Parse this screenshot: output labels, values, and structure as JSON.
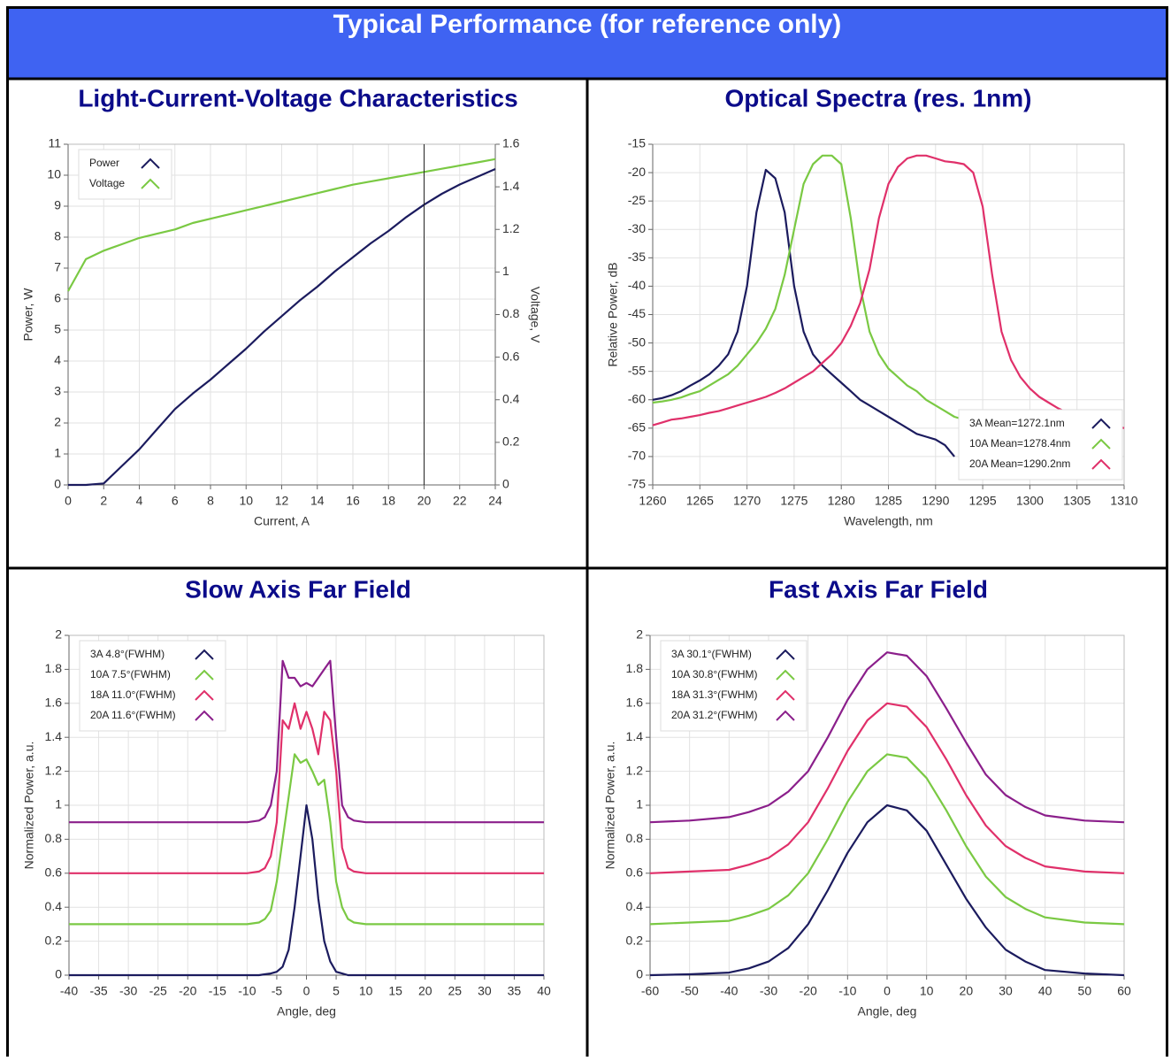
{
  "header": {
    "title": "Typical Performance (for reference only)"
  },
  "chart_data": [
    {
      "type": "line",
      "title": "Light-Current-Voltage Characteristics",
      "xlabel": "Current, A",
      "ylabel": "Power, W",
      "y2label": "Voltage, V",
      "xlim": [
        0,
        24
      ],
      "xticks": [
        0,
        2,
        4,
        6,
        8,
        10,
        12,
        14,
        16,
        18,
        20,
        22,
        24
      ],
      "ylim": [
        0,
        11
      ],
      "yticks": [
        0,
        1,
        2,
        3,
        4,
        5,
        6,
        7,
        8,
        9,
        10,
        11
      ],
      "y2lim": [
        0,
        1.6
      ],
      "y2ticks": [
        0,
        0.2,
        0.4,
        0.6,
        0.8,
        1,
        1.2,
        1.4,
        1.6
      ],
      "grid": true,
      "legend": "upper left",
      "cursor_x": 20,
      "x": [
        0,
        1,
        2,
        3,
        4,
        5,
        6,
        7,
        8,
        9,
        10,
        11,
        12,
        13,
        14,
        15,
        16,
        17,
        18,
        19,
        20,
        21,
        22,
        23,
        24
      ],
      "series": [
        {
          "name": "Power",
          "color": "#1b1b5e",
          "values": [
            0,
            0,
            0.05,
            0.6,
            1.15,
            1.8,
            2.45,
            2.95,
            3.4,
            3.9,
            4.4,
            4.95,
            5.45,
            5.95,
            6.4,
            6.9,
            7.35,
            7.8,
            8.2,
            8.65,
            9.05,
            9.4,
            9.7,
            9.95,
            10.2
          ]
        },
        {
          "name": "Voltage",
          "color": "#7ac943",
          "axis": "y2",
          "values": [
            0.91,
            1.06,
            1.1,
            1.13,
            1.16,
            1.18,
            1.2,
            1.23,
            1.25,
            1.27,
            1.29,
            1.31,
            1.33,
            1.35,
            1.37,
            1.39,
            1.41,
            1.425,
            1.44,
            1.455,
            1.47,
            1.485,
            1.5,
            1.515,
            1.53
          ]
        }
      ]
    },
    {
      "type": "line",
      "title": "Optical Spectra (res. 1nm)",
      "xlabel": "Wavelength, nm",
      "ylabel": "Relative Power, dB",
      "xlim": [
        1260,
        1310
      ],
      "xticks": [
        1260,
        1265,
        1270,
        1275,
        1280,
        1285,
        1290,
        1295,
        1300,
        1305,
        1310
      ],
      "ylim": [
        -75,
        -15
      ],
      "yticks": [
        -75,
        -70,
        -65,
        -60,
        -55,
        -50,
        -45,
        -40,
        -35,
        -30,
        -25,
        -20,
        -15
      ],
      "grid": true,
      "legend": "lower right",
      "x": [
        1260,
        1261,
        1262,
        1263,
        1264,
        1265,
        1266,
        1267,
        1268,
        1269,
        1270,
        1271,
        1272,
        1273,
        1274,
        1275,
        1276,
        1277,
        1278,
        1279,
        1280,
        1281,
        1282,
        1283,
        1284,
        1285,
        1286,
        1287,
        1288,
        1289,
        1290,
        1291,
        1292,
        1293,
        1294,
        1295,
        1296,
        1297,
        1298,
        1299,
        1300,
        1301,
        1302,
        1303,
        1304,
        1305,
        1306,
        1307,
        1308,
        1309,
        1310
      ],
      "series": [
        {
          "name": "3A Mean=1272.1nm",
          "color": "#1b1b5e",
          "values": [
            -60,
            -59.7,
            -59.2,
            -58.5,
            -57.5,
            -56.6,
            -55.5,
            -54,
            -52,
            -48,
            -40,
            -27,
            -19.5,
            -21,
            -27,
            -40,
            -48,
            -52,
            -54,
            -55.5,
            -57,
            -58.5,
            -60,
            -61,
            -62,
            -63,
            -64,
            -65,
            -66,
            -66.5,
            -67,
            -68,
            -70,
            null,
            null,
            null,
            null,
            null,
            null,
            null,
            null,
            null,
            null,
            null,
            null,
            null,
            null,
            null,
            null,
            null,
            null
          ]
        },
        {
          "name": "10A Mean=1278.4nm",
          "color": "#7ac943",
          "values": [
            -60.5,
            -60.3,
            -60,
            -59.6,
            -59,
            -58.5,
            -57.5,
            -56.5,
            -55.5,
            -54,
            -52,
            -50,
            -47.5,
            -44,
            -38,
            -30,
            -22,
            -18.5,
            -17,
            -17,
            -18.5,
            -28,
            -40,
            -48,
            -52,
            -54.5,
            -56,
            -57.5,
            -58.5,
            -60,
            -61,
            -62,
            -63,
            -63.5,
            -64,
            -64.5,
            -64.5,
            -65,
            null,
            null,
            null,
            null,
            null,
            null,
            null,
            null,
            null,
            null,
            null,
            null,
            null
          ]
        },
        {
          "name": "20A Mean=1290.2nm",
          "color": "#e0306a",
          "values": [
            -64.5,
            -64,
            -63.5,
            -63.3,
            -63,
            -62.7,
            -62.3,
            -62,
            -61.5,
            -61,
            -60.5,
            -60,
            -59.5,
            -58.8,
            -58,
            -57,
            -56,
            -55,
            -53.5,
            -52,
            -50,
            -47,
            -43,
            -37,
            -28,
            -22,
            -19,
            -17.5,
            -17,
            -17,
            -17.5,
            -18,
            -18.2,
            -18.5,
            -20,
            -26,
            -38,
            -48,
            -53,
            -56,
            -58,
            -59.5,
            -60.5,
            -61.5,
            -62.3,
            -63,
            -63.5,
            -64,
            -64.3,
            -64.6,
            -65
          ]
        }
      ]
    },
    {
      "type": "line",
      "title": "Slow Axis Far Field",
      "xlabel": "Angle, deg",
      "ylabel": "Normalized Power, a.u.",
      "xlim": [
        -40,
        40
      ],
      "xticks": [
        -40,
        -35,
        -30,
        -25,
        -20,
        -15,
        -10,
        -5,
        0,
        5,
        10,
        15,
        20,
        25,
        30,
        35,
        40
      ],
      "ylim": [
        0,
        2
      ],
      "yticks": [
        0,
        0.2,
        0.4,
        0.6,
        0.8,
        1,
        1.2,
        1.4,
        1.6,
        1.8,
        2
      ],
      "grid": true,
      "legend": "upper left",
      "x": [
        -40,
        -20,
        -10,
        -8,
        -7,
        -6,
        -5,
        -4,
        -3,
        -2,
        -1,
        0,
        1,
        2,
        3,
        4,
        5,
        6,
        7,
        8,
        10,
        20,
        40
      ],
      "series": [
        {
          "name": "3A 4.8°(FWHM)",
          "color": "#1b1b5e",
          "values": [
            0,
            0,
            0,
            0,
            0.005,
            0.01,
            0.02,
            0.05,
            0.15,
            0.4,
            0.7,
            1,
            0.8,
            0.45,
            0.2,
            0.08,
            0.02,
            0.01,
            0,
            0,
            0,
            0,
            0
          ]
        },
        {
          "name": "10A 7.5°(FWHM)",
          "color": "#7ac943",
          "values": [
            0.3,
            0.3,
            0.3,
            0.31,
            0.33,
            0.38,
            0.55,
            0.8,
            1.05,
            1.3,
            1.25,
            1.27,
            1.2,
            1.12,
            1.15,
            0.9,
            0.55,
            0.4,
            0.33,
            0.31,
            0.3,
            0.3,
            0.3
          ]
        },
        {
          "name": "18A 11.0°(FWHM)",
          "color": "#e0306a",
          "values": [
            0.6,
            0.6,
            0.6,
            0.61,
            0.63,
            0.7,
            0.9,
            1.5,
            1.45,
            1.6,
            1.45,
            1.55,
            1.45,
            1.3,
            1.55,
            1.5,
            1.2,
            0.75,
            0.63,
            0.61,
            0.6,
            0.6,
            0.6
          ]
        },
        {
          "name": "20A 11.6°(FWHM)",
          "color": "#8b1f8b",
          "values": [
            0.9,
            0.9,
            0.9,
            0.91,
            0.93,
            1,
            1.2,
            1.85,
            1.75,
            1.75,
            1.7,
            1.72,
            1.7,
            1.75,
            1.8,
            1.85,
            1.4,
            1,
            0.93,
            0.91,
            0.9,
            0.9,
            0.9
          ]
        }
      ]
    },
    {
      "type": "line",
      "title": "Fast Axis Far Field",
      "xlabel": "Angle, deg",
      "ylabel": "Normalized Power, a.u.",
      "xlim": [
        -60,
        60
      ],
      "xticks": [
        -60,
        -50,
        -40,
        -30,
        -20,
        -10,
        0,
        10,
        20,
        30,
        40,
        50,
        60
      ],
      "ylim": [
        0,
        2
      ],
      "yticks": [
        0,
        0.2,
        0.4,
        0.6,
        0.8,
        1,
        1.2,
        1.4,
        1.6,
        1.8,
        2
      ],
      "grid": true,
      "legend": "upper left",
      "x": [
        -60,
        -50,
        -40,
        -35,
        -30,
        -25,
        -20,
        -15,
        -10,
        -5,
        0,
        5,
        10,
        15,
        20,
        25,
        30,
        35,
        40,
        50,
        60
      ],
      "series": [
        {
          "name": "3A 30.1°(FWHM)",
          "color": "#1b1b5e",
          "values": [
            0,
            0.005,
            0.015,
            0.04,
            0.08,
            0.16,
            0.3,
            0.5,
            0.72,
            0.9,
            1,
            0.97,
            0.85,
            0.65,
            0.45,
            0.28,
            0.15,
            0.08,
            0.03,
            0.01,
            0
          ]
        },
        {
          "name": "10A 30.8°(FWHM)",
          "color": "#7ac943",
          "values": [
            0.3,
            0.31,
            0.32,
            0.35,
            0.39,
            0.47,
            0.6,
            0.8,
            1.02,
            1.2,
            1.3,
            1.28,
            1.16,
            0.97,
            0.76,
            0.58,
            0.46,
            0.39,
            0.34,
            0.31,
            0.3
          ]
        },
        {
          "name": "18A 31.3°(FWHM)",
          "color": "#e0306a",
          "values": [
            0.6,
            0.61,
            0.62,
            0.65,
            0.69,
            0.77,
            0.9,
            1.1,
            1.32,
            1.5,
            1.6,
            1.58,
            1.46,
            1.27,
            1.06,
            0.88,
            0.76,
            0.69,
            0.64,
            0.61,
            0.6
          ]
        },
        {
          "name": "20A 31.2°(FWHM)",
          "color": "#8b1f8b",
          "values": [
            0.9,
            0.91,
            0.93,
            0.96,
            1,
            1.08,
            1.2,
            1.4,
            1.62,
            1.8,
            1.9,
            1.88,
            1.76,
            1.57,
            1.37,
            1.18,
            1.06,
            0.99,
            0.94,
            0.91,
            0.9
          ]
        }
      ]
    }
  ]
}
